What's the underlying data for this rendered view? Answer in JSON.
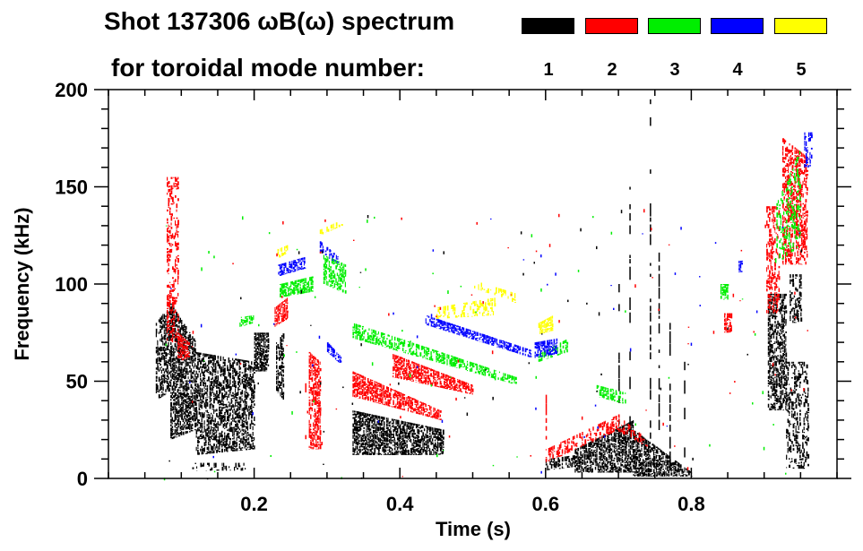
{
  "chart_data": {
    "type": "heatmap",
    "title": "Shot 137306 ωB(ω) spectrum",
    "subtitle": "for toroidal mode number:",
    "xlabel": "Time (s)",
    "ylabel": "Frequency (kHz)",
    "xlim": [
      0.0,
      1.0
    ],
    "ylim": [
      0,
      200
    ],
    "x_major_ticks": [
      0.2,
      0.4,
      0.6,
      0.8
    ],
    "x_tick_labels": [
      "0.2",
      "0.4",
      "0.6",
      "0.8"
    ],
    "x_minor_step": 0.05,
    "y_major_ticks": [
      0,
      50,
      100,
      150,
      200
    ],
    "y_tick_labels": [
      "0",
      "50",
      "100",
      "150",
      "200"
    ],
    "y_minor_step": 10,
    "legend_position": "top-right",
    "legend": [
      {
        "mode": "1",
        "color": "#000000"
      },
      {
        "mode": "2",
        "color": "#ff0000"
      },
      {
        "mode": "3",
        "color": "#00ee00"
      },
      {
        "mode": "4",
        "color": "#0000ff"
      },
      {
        "mode": "5",
        "color": "#ffff00"
      }
    ],
    "series": [
      {
        "name": "n=1",
        "mode": "1",
        "color": "#000000",
        "regions": [
          {
            "t": [
              0.065,
              0.085
            ],
            "f_lo": [
              40,
              45
            ],
            "f_hi": [
              80,
              90
            ],
            "density": 0.7
          },
          {
            "t": [
              0.085,
              0.12
            ],
            "f_lo": [
              20,
              25
            ],
            "f_hi": [
              90,
              70
            ],
            "density": 0.85
          },
          {
            "t": [
              0.12,
              0.2
            ],
            "f_lo": [
              12,
              15
            ],
            "f_hi": [
              65,
              60
            ],
            "density": 0.7
          },
          {
            "t": [
              0.2,
              0.22
            ],
            "f_lo": [
              55,
              55
            ],
            "f_hi": [
              75,
              75
            ],
            "density": 0.95
          },
          {
            "t": [
              0.23,
              0.24
            ],
            "f_lo": [
              45,
              40
            ],
            "f_hi": [
              70,
              75
            ],
            "density": 0.8
          },
          {
            "t": [
              0.115,
              0.19
            ],
            "f_lo": [
              4,
              4
            ],
            "f_hi": [
              8,
              8
            ],
            "density": 0.4
          },
          {
            "t": [
              0.335,
              0.46
            ],
            "f_lo": [
              12,
              12
            ],
            "f_hi": [
              35,
              25
            ],
            "density": 0.85
          },
          {
            "t": [
              0.6,
              0.64
            ],
            "f_lo": [
              4,
              6
            ],
            "f_hi": [
              10,
              12
            ],
            "density": 0.6
          },
          {
            "t": [
              0.64,
              0.72
            ],
            "f_lo": [
              3,
              3
            ],
            "f_hi": [
              15,
              30
            ],
            "density": 0.85
          },
          {
            "t": [
              0.72,
              0.8
            ],
            "f_lo": [
              1,
              1
            ],
            "f_hi": [
              25,
              3
            ],
            "density": 0.85
          },
          {
            "t": [
              0.905,
              0.93
            ],
            "f_lo": [
              35,
              35
            ],
            "f_hi": [
              95,
              95
            ],
            "density": 0.75
          },
          {
            "t": [
              0.93,
              0.96
            ],
            "f_lo": [
              5,
              5
            ],
            "f_hi": [
              60,
              60
            ],
            "density": 0.45
          },
          {
            "t": [
              0.935,
              0.95
            ],
            "f_lo": [
              80,
              80
            ],
            "f_hi": [
              105,
              105
            ],
            "density": 0.6
          }
        ],
        "lines": [
          {
            "t": 0.743,
            "f": [
              2,
              195
            ]
          },
          {
            "t": 0.755,
            "f": [
              5,
              120
            ]
          },
          {
            "t": 0.77,
            "f": [
              5,
              80
            ]
          },
          {
            "t": 0.79,
            "f": [
              5,
              60
            ]
          },
          {
            "t": 0.715,
            "f": [
              5,
              150
            ]
          },
          {
            "t": 0.7,
            "f": [
              10,
              100
            ]
          }
        ]
      },
      {
        "name": "n=2",
        "mode": "2",
        "color": "#ff0000",
        "regions": [
          {
            "t": [
              0.08,
              0.095
            ],
            "f_lo": [
              70,
              70
            ],
            "f_hi": [
              155,
              155
            ],
            "density": 0.45
          },
          {
            "t": [
              0.095,
              0.11
            ],
            "f_lo": [
              60,
              62
            ],
            "f_hi": [
              75,
              70
            ],
            "density": 0.8
          },
          {
            "t": [
              0.228,
              0.245
            ],
            "f_lo": [
              78,
              82
            ],
            "f_hi": [
              88,
              93
            ],
            "density": 0.9
          },
          {
            "t": [
              0.275,
              0.29
            ],
            "f_lo": [
              15,
              15
            ],
            "f_hi": [
              65,
              60
            ],
            "density": 0.85
          },
          {
            "t": [
              0.335,
              0.455
            ],
            "f_lo": [
              42,
              30
            ],
            "f_hi": [
              55,
              35
            ],
            "density": 0.85
          },
          {
            "t": [
              0.39,
              0.5
            ],
            "f_lo": [
              52,
              43
            ],
            "f_hi": [
              64,
              48
            ],
            "density": 0.85
          },
          {
            "t": [
              0.6,
              0.7
            ],
            "f_lo": [
              8,
              25
            ],
            "f_hi": [
              15,
              33
            ],
            "density": 0.55
          },
          {
            "t": [
              0.7,
              0.74
            ],
            "f_lo": [
              24,
              16
            ],
            "f_hi": [
              32,
              20
            ],
            "density": 0.55
          },
          {
            "t": [
              0.845,
              0.855
            ],
            "f_lo": [
              75,
              75
            ],
            "f_hi": [
              85,
              85
            ],
            "density": 0.8
          },
          {
            "t": [
              0.903,
              0.92
            ],
            "f_lo": [
              85,
              85
            ],
            "f_hi": [
              140,
              140
            ],
            "density": 0.6
          },
          {
            "t": [
              0.925,
              0.96
            ],
            "f_lo": [
              110,
              110
            ],
            "f_hi": [
              175,
              165
            ],
            "density": 0.65
          }
        ],
        "lines": [
          {
            "t": 0.27,
            "f": [
              20,
              55
            ]
          },
          {
            "t": 0.6,
            "f": [
              20,
              50
            ]
          }
        ]
      },
      {
        "name": "n=3",
        "mode": "3",
        "color": "#00ee00",
        "regions": [
          {
            "t": [
              0.18,
              0.2
            ],
            "f_lo": [
              78,
              80
            ],
            "f_hi": [
              83,
              84
            ],
            "density": 0.7
          },
          {
            "t": [
              0.235,
              0.28
            ],
            "f_lo": [
              93,
              96
            ],
            "f_hi": [
              100,
              104
            ],
            "density": 0.85
          },
          {
            "t": [
              0.295,
              0.325
            ],
            "f_lo": [
              100,
              95
            ],
            "f_hi": [
              115,
              110
            ],
            "density": 0.7
          },
          {
            "t": [
              0.335,
              0.56
            ],
            "f_lo": [
              72,
              48
            ],
            "f_hi": [
              80,
              52
            ],
            "density": 0.65
          },
          {
            "t": [
              0.59,
              0.63
            ],
            "f_lo": [
              60,
              65
            ],
            "f_hi": [
              64,
              72
            ],
            "density": 0.7
          },
          {
            "t": [
              0.67,
              0.71
            ],
            "f_lo": [
              42,
              38
            ],
            "f_hi": [
              48,
              44
            ],
            "density": 0.75
          },
          {
            "t": [
              0.84,
              0.85
            ],
            "f_lo": [
              92,
              92
            ],
            "f_hi": [
              100,
              100
            ],
            "density": 0.8
          },
          {
            "t": [
              0.915,
              0.95
            ],
            "f_lo": [
              110,
              120
            ],
            "f_hi": [
              140,
              170
            ],
            "density": 0.35
          }
        ],
        "lines": []
      },
      {
        "name": "n=4",
        "mode": "4",
        "color": "#0000ff",
        "regions": [
          {
            "t": [
              0.233,
              0.27
            ],
            "f_lo": [
              104,
              108
            ],
            "f_hi": [
              110,
              114
            ],
            "density": 0.85
          },
          {
            "t": [
              0.29,
              0.315
            ],
            "f_lo": [
              116,
              110
            ],
            "f_hi": [
              122,
              114
            ],
            "density": 0.7
          },
          {
            "t": [
              0.3,
              0.32
            ],
            "f_lo": [
              65,
              58
            ],
            "f_hi": [
              70,
              62
            ],
            "density": 0.8
          },
          {
            "t": [
              0.435,
              0.58
            ],
            "f_lo": [
              79,
              62
            ],
            "f_hi": [
              84,
              66
            ],
            "density": 0.8
          },
          {
            "t": [
              0.585,
              0.615
            ],
            "f_lo": [
              62,
              64
            ],
            "f_hi": [
              70,
              72
            ],
            "density": 0.85
          },
          {
            "t": [
              0.865,
              0.87
            ],
            "f_lo": [
              106,
              106
            ],
            "f_hi": [
              112,
              112
            ],
            "density": 0.8
          },
          {
            "t": [
              0.955,
              0.965
            ],
            "f_lo": [
              160,
              160
            ],
            "f_hi": [
              178,
              178
            ],
            "density": 0.5
          }
        ],
        "lines": []
      },
      {
        "name": "n=5",
        "mode": "5",
        "color": "#ffff00",
        "regions": [
          {
            "t": [
              0.232,
              0.245
            ],
            "f_lo": [
              113,
              116
            ],
            "f_hi": [
              118,
              120
            ],
            "density": 0.8
          },
          {
            "t": [
              0.29,
              0.32
            ],
            "f_lo": [
              125,
              130
            ],
            "f_hi": [
              128,
              133
            ],
            "density": 0.5
          },
          {
            "t": [
              0.45,
              0.53
            ],
            "f_lo": [
              82,
              84
            ],
            "f_hi": [
              88,
              93
            ],
            "density": 0.5
          },
          {
            "t": [
              0.5,
              0.56
            ],
            "f_lo": [
              98,
              90
            ],
            "f_hi": [
              102,
              95
            ],
            "density": 0.4
          },
          {
            "t": [
              0.59,
              0.61
            ],
            "f_lo": [
              74,
              76
            ],
            "f_hi": [
              80,
              84
            ],
            "density": 0.9
          }
        ],
        "lines": []
      }
    ]
  }
}
